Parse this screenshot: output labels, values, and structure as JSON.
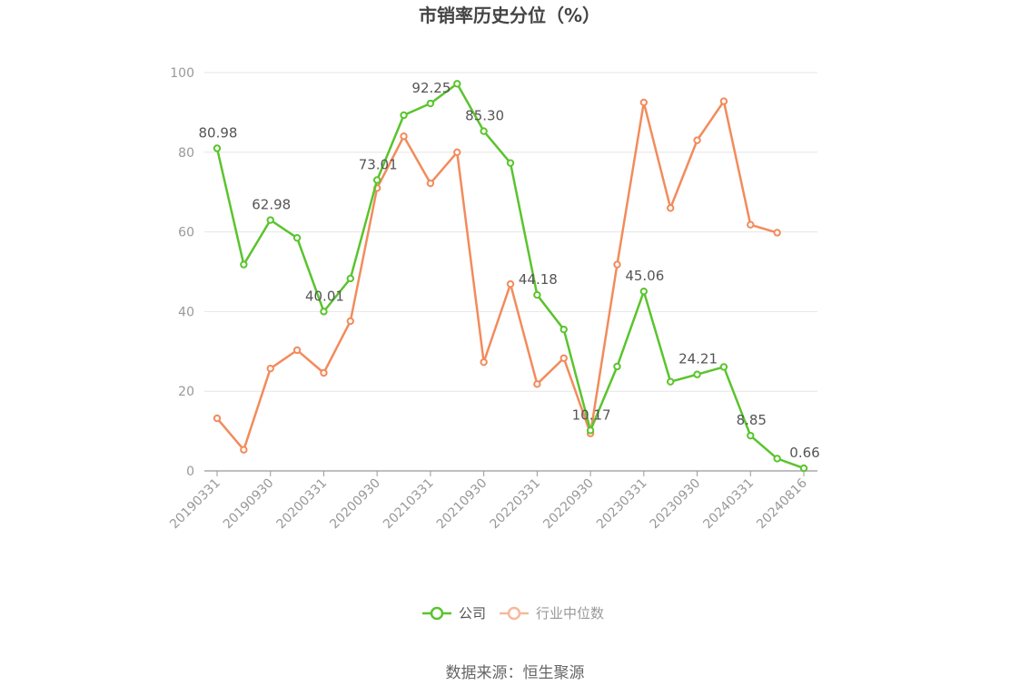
{
  "chart_data": {
    "type": "line",
    "title": "市销率历史分位（%）",
    "x": [
      "20190331",
      "20190630",
      "20190930",
      "20191231",
      "20200331",
      "20200630",
      "20200930",
      "20201231",
      "20210331",
      "20210630",
      "20210930",
      "20211231",
      "20220331",
      "20220630",
      "20220930",
      "20221231",
      "20230331",
      "20230630",
      "20230930",
      "20231231",
      "20240331",
      "20240630",
      "20240816"
    ],
    "x_tick_labels": [
      "20190331",
      "20190930",
      "20200331",
      "20200930",
      "20210331",
      "20210930",
      "20220331",
      "20220930",
      "20230331",
      "20230930",
      "20240331",
      "20240816"
    ],
    "ylim": [
      0,
      100
    ],
    "y_ticks": [
      0,
      20,
      40,
      60,
      80,
      100
    ],
    "grid": true,
    "legend_position": "bottom-center",
    "series": [
      {
        "name": "公司",
        "color": "#5ac42d",
        "values": [
          80.98,
          51.8,
          62.98,
          58.5,
          40.01,
          48.3,
          73.01,
          89.3,
          92.25,
          97.2,
          85.3,
          77.3,
          44.18,
          35.5,
          10.17,
          26.2,
          45.06,
          22.4,
          24.21,
          26.1,
          8.85,
          3.1,
          0.66
        ],
        "labels": {
          "0": "80.98",
          "2": "62.98",
          "4": "40.01",
          "6": "73.01",
          "8": "92.25",
          "10": "85.30",
          "12": "44.18",
          "14": "10.17",
          "16": "45.06",
          "18": "24.21",
          "20": "8.85",
          "22": "0.66"
        }
      },
      {
        "name": "行业中位数",
        "color": "#f28b5c",
        "values": [
          13.2,
          5.3,
          25.7,
          30.3,
          24.6,
          37.6,
          71.0,
          84.0,
          72.2,
          80.0,
          27.3,
          46.9,
          21.8,
          28.3,
          9.4,
          51.8,
          92.5,
          66.0,
          83.0,
          92.8,
          61.8,
          59.8,
          null
        ]
      }
    ],
    "source_text": "数据来源：恒生聚源"
  }
}
